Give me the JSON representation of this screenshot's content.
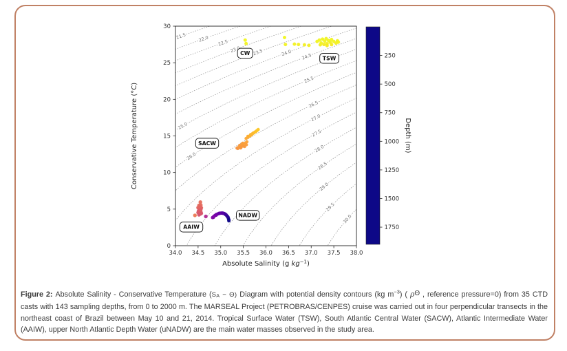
{
  "chart_data": {
    "type": "scatter",
    "title": "",
    "xlabel": {
      "pre": "Absolute Salinity (g ",
      "math": "kg",
      "sup": "−1",
      "post": ")"
    },
    "ylabel": "Conservative Temperature (°C)",
    "xlim": [
      34.0,
      38.0
    ],
    "ylim": [
      0,
      30
    ],
    "x_ticks": [
      "34.0",
      "34.5",
      "35.0",
      "35.5",
      "36.0",
      "36.5",
      "37.0",
      "37.5",
      "38.0"
    ],
    "y_ticks": [
      "0",
      "5",
      "10",
      "15",
      "20",
      "25",
      "30"
    ],
    "grid": false,
    "contours": {
      "meaning": "potential density sigma0 (kg m-3), reference pressure 0",
      "values": [
        21.5,
        22.0,
        22.5,
        23.0,
        23.5,
        24.0,
        24.5,
        25.0,
        25.5,
        26.0,
        26.5,
        27.0,
        27.5,
        28.0,
        28.5,
        29.0,
        29.5,
        30.0
      ],
      "label_s_positions": {
        "21.5": 34.12,
        "22.0": 34.62,
        "22.5": 35.05,
        "23.0": 35.32,
        "23.5": 35.82,
        "24.0": 36.45,
        "24.5": 36.9,
        "25.0": 34.16,
        "25.5": 36.95,
        "26.0": 34.35,
        "26.5": 37.05,
        "27.0": 37.1,
        "27.5": 37.12,
        "28.0": 37.18,
        "28.5": 37.25,
        "29.0": 37.28,
        "29.5": 37.42,
        "30.0": 37.8
      },
      "line_color": "#9a9a9a",
      "label_color": "#6f6f6f"
    },
    "colorbar": {
      "label": "Depth (m)",
      "ticks": [
        "250",
        "500",
        "750",
        "1000",
        "1250",
        "1500",
        "1750"
      ],
      "vmin": 0,
      "vmax": 1900,
      "colormap": [
        {
          "v": 0.0,
          "c": "#0d0887"
        },
        {
          "v": 0.1,
          "c": "#41049d"
        },
        {
          "v": 0.2,
          "c": "#6a00a8"
        },
        {
          "v": 0.3,
          "c": "#8f0da4"
        },
        {
          "v": 0.4,
          "c": "#b12a90"
        },
        {
          "v": 0.5,
          "c": "#cc4778"
        },
        {
          "v": 0.6,
          "c": "#e16462"
        },
        {
          "v": 0.7,
          "c": "#f1844b"
        },
        {
          "v": 0.8,
          "c": "#fca636"
        },
        {
          "v": 0.9,
          "c": "#fcce25"
        },
        {
          "v": 1.0,
          "c": "#f0f921"
        }
      ]
    },
    "series": [
      {
        "name": "surface-TSW-CW",
        "radius": 2.5,
        "points": [
          [
            35.54,
            28.1,
            15
          ],
          [
            35.56,
            27.62,
            25
          ],
          [
            36.41,
            28.45,
            10
          ],
          [
            36.43,
            27.5,
            30
          ],
          [
            36.63,
            27.55,
            35
          ],
          [
            36.72,
            27.5,
            40
          ],
          [
            36.85,
            27.45,
            45
          ],
          [
            36.95,
            27.38,
            50
          ],
          [
            37.13,
            27.9,
            20
          ],
          [
            37.18,
            28.1,
            15
          ],
          [
            37.2,
            27.45,
            55
          ],
          [
            37.22,
            27.7,
            35
          ],
          [
            37.25,
            28.22,
            18
          ],
          [
            37.28,
            27.5,
            60
          ],
          [
            37.3,
            27.95,
            25
          ],
          [
            37.33,
            28.3,
            12
          ],
          [
            37.35,
            27.6,
            45
          ],
          [
            37.35,
            27.35,
            70
          ],
          [
            37.38,
            28.05,
            22
          ],
          [
            37.42,
            27.8,
            38
          ],
          [
            37.45,
            28.18,
            16
          ],
          [
            37.45,
            27.48,
            65
          ],
          [
            37.5,
            27.9,
            28
          ],
          [
            37.55,
            27.68,
            50
          ],
          [
            37.58,
            28.0,
            20
          ],
          [
            37.6,
            27.82,
            33
          ]
        ]
      },
      {
        "name": "SACW",
        "radius": 2.3,
        "points": [
          [
            35.36,
            13.33,
            470
          ],
          [
            35.38,
            13.28,
            480
          ],
          [
            35.4,
            13.5,
            455
          ],
          [
            35.42,
            13.72,
            440
          ],
          [
            35.44,
            13.6,
            450
          ],
          [
            35.45,
            13.42,
            460
          ],
          [
            35.47,
            13.93,
            430
          ],
          [
            35.48,
            13.75,
            435
          ],
          [
            35.5,
            13.6,
            445
          ],
          [
            35.52,
            13.9,
            420
          ],
          [
            35.53,
            13.55,
            455
          ],
          [
            35.55,
            14.05,
            410
          ],
          [
            35.57,
            13.8,
            430
          ],
          [
            35.58,
            14.2,
            400
          ],
          [
            35.44,
            13.35,
            465
          ],
          [
            35.49,
            14.0,
            425
          ],
          [
            35.56,
            14.65,
            370
          ],
          [
            35.6,
            14.8,
            355
          ],
          [
            35.6,
            14.95,
            345
          ],
          [
            35.63,
            14.95,
            340
          ],
          [
            35.65,
            15.05,
            330
          ],
          [
            35.67,
            15.1,
            320
          ],
          [
            35.68,
            15.22,
            310
          ],
          [
            35.7,
            15.28,
            300
          ],
          [
            35.72,
            15.4,
            285
          ],
          [
            35.74,
            15.45,
            275
          ],
          [
            35.76,
            15.55,
            260
          ],
          [
            35.78,
            15.6,
            250
          ],
          [
            35.8,
            15.72,
            240
          ],
          [
            35.82,
            15.82,
            230
          ],
          [
            35.83,
            15.88,
            220
          ],
          [
            35.66,
            15.18,
            315
          ],
          [
            35.71,
            15.35,
            290
          ]
        ]
      },
      {
        "name": "AAIW",
        "radius": 2.7,
        "points": [
          [
            34.43,
            4.15,
            640
          ],
          [
            34.55,
            5.95,
            700
          ],
          [
            34.52,
            5.5,
            720
          ],
          [
            34.56,
            5.55,
            715
          ],
          [
            34.54,
            5.35,
            745
          ],
          [
            34.5,
            5.2,
            760
          ],
          [
            34.57,
            5.18,
            755
          ],
          [
            34.53,
            5.05,
            775
          ],
          [
            34.55,
            4.9,
            795
          ],
          [
            34.51,
            4.75,
            815
          ],
          [
            34.56,
            4.62,
            825
          ],
          [
            34.53,
            4.5,
            845
          ],
          [
            34.55,
            4.35,
            860
          ],
          [
            34.52,
            4.22,
            875
          ],
          [
            34.57,
            4.42,
            855
          ],
          [
            34.5,
            4.52,
            840
          ],
          [
            34.54,
            4.7,
            820
          ],
          [
            34.55,
            5.1,
            780
          ],
          [
            34.53,
            5.3,
            750
          ],
          [
            34.56,
            4.95,
            790
          ],
          [
            34.67,
            4.0,
            1150
          ]
        ]
      },
      {
        "name": "uNADW",
        "radius": 2.5,
        "points": [
          [
            34.82,
            3.85,
            1390
          ],
          [
            34.84,
            3.95,
            1410
          ],
          [
            34.86,
            4.05,
            1430
          ],
          [
            34.88,
            4.15,
            1455
          ],
          [
            34.9,
            4.25,
            1480
          ],
          [
            34.93,
            4.33,
            1510
          ],
          [
            34.96,
            4.4,
            1540
          ],
          [
            34.99,
            4.45,
            1570
          ],
          [
            35.02,
            4.46,
            1600
          ],
          [
            35.05,
            4.44,
            1630
          ],
          [
            35.08,
            4.38,
            1665
          ],
          [
            35.1,
            4.3,
            1700
          ],
          [
            35.12,
            4.2,
            1735
          ],
          [
            35.14,
            4.05,
            1770
          ],
          [
            35.16,
            3.9,
            1805
          ],
          [
            35.17,
            3.72,
            1840
          ],
          [
            35.18,
            3.55,
            1870
          ],
          [
            35.18,
            3.4,
            1890
          ],
          [
            34.84,
            3.88,
            1400
          ],
          [
            34.9,
            4.18,
            1470
          ],
          [
            34.97,
            4.42,
            1550
          ],
          [
            35.04,
            4.45,
            1615
          ],
          [
            35.11,
            4.26,
            1715
          ],
          [
            35.15,
            3.98,
            1790
          ]
        ]
      }
    ],
    "water_mass_labels": [
      {
        "text": "CW",
        "s": 35.54,
        "t": 26.3
      },
      {
        "text": "TSW",
        "s": 37.4,
        "t": 25.6
      },
      {
        "text": "SACW",
        "s": 34.7,
        "t": 14.0
      },
      {
        "text": "AAIW",
        "s": 34.35,
        "t": 2.55
      },
      {
        "text": "NADW",
        "s": 35.6,
        "t": 4.15
      }
    ]
  },
  "caption": {
    "segments": [
      {
        "text": "Figure 2: ",
        "style": "bold"
      },
      {
        "text": "Absolute Salinity - Conservative Temperature ("
      },
      {
        "text": "S",
        "style": "formula"
      },
      {
        "text": "A",
        "style": "formula-sub"
      },
      {
        "text": " − Θ)",
        "style": "formula"
      },
      {
        "text": "  Diagram with potential density contours (kg m"
      },
      {
        "text": "−3",
        "style": "sup"
      },
      {
        "text": ") ( "
      },
      {
        "text": "ρ",
        "style": "italic"
      },
      {
        "text": "Θ",
        "style": "theta"
      },
      {
        "text": " , reference pressure=0) from 35 CTD casts with 143 sampling depths, from 0 to 2000 m. The MARSEAL Project (PETROBRAS/CENPES) cruise was carried out in four perpendicular transects in the northeast coast of Brazil between May 10 and 21, 2014. Tropical Surface Water (TSW), South Atlantic Central Water (SACW), Atlantic Intermediate Water (AAIW), upper North Atlantic Depth Water (uNADW) are the main water masses observed in the study area."
      }
    ]
  }
}
